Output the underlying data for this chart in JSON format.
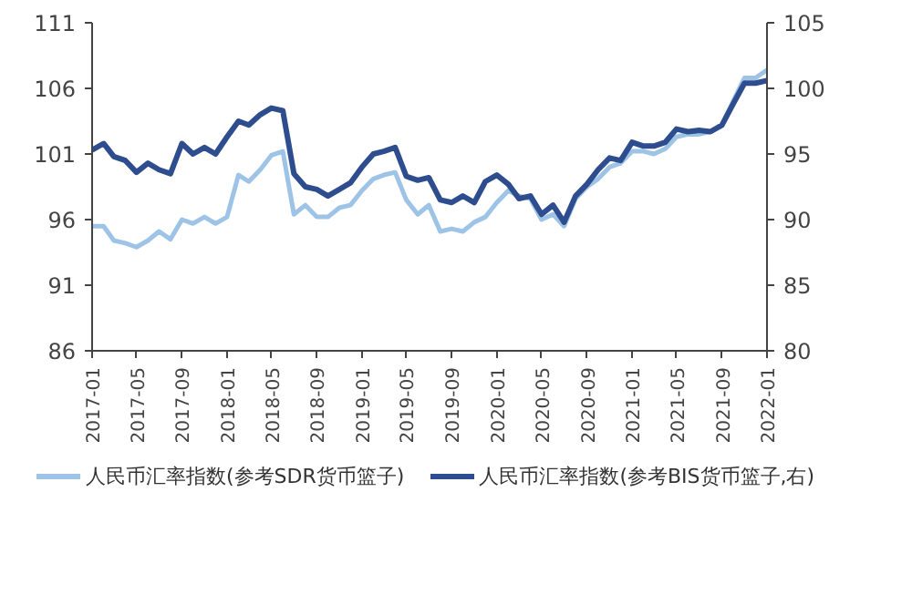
{
  "chart_data": {
    "type": "line",
    "x": [
      "2017-01",
      "2017-02",
      "2017-03",
      "2017-04",
      "2017-05",
      "2017-06",
      "2017-07",
      "2017-08",
      "2017-09",
      "2017-10",
      "2017-11",
      "2017-12",
      "2018-01",
      "2018-02",
      "2018-03",
      "2018-04",
      "2018-05",
      "2018-06",
      "2018-07",
      "2018-08",
      "2018-09",
      "2018-10",
      "2018-11",
      "2018-12",
      "2019-01",
      "2019-02",
      "2019-03",
      "2019-04",
      "2019-05",
      "2019-06",
      "2019-07",
      "2019-08",
      "2019-09",
      "2019-10",
      "2019-11",
      "2019-12",
      "2020-01",
      "2020-02",
      "2020-03",
      "2020-04",
      "2020-05",
      "2020-06",
      "2020-07",
      "2020-08",
      "2020-09",
      "2020-10",
      "2020-11",
      "2020-12",
      "2021-01",
      "2021-02",
      "2021-03",
      "2021-04",
      "2021-05",
      "2021-06",
      "2021-07",
      "2021-08",
      "2021-09",
      "2021-10",
      "2021-11",
      "2021-12",
      "2022-01"
    ],
    "series": [
      {
        "name": "人民币汇率指数(参考SDR货币篮子)",
        "color": "#9dc3e6",
        "values": [
          95.5,
          95.5,
          94.4,
          94.2,
          93.9,
          94.4,
          95.1,
          94.5,
          96.0,
          95.7,
          96.2,
          95.7,
          96.2,
          99.4,
          98.9,
          99.8,
          100.9,
          101.2,
          96.4,
          97.1,
          96.2,
          96.2,
          96.9,
          97.1,
          98.2,
          99.1,
          99.4,
          99.6,
          97.5,
          96.4,
          97.1,
          95.1,
          95.3,
          95.1,
          95.8,
          96.2,
          97.3,
          98.2,
          97.8,
          97.6,
          96.0,
          96.4,
          95.5,
          97.6,
          98.5,
          99.1,
          100.0,
          100.3,
          101.2,
          101.2,
          101.0,
          101.4,
          102.3,
          102.5,
          102.5,
          102.7,
          103.2,
          105.0,
          106.8,
          106.8,
          107.4
        ]
      },
      {
        "name": "人民币汇率指数(参考BIS货币篮子,右)",
        "color": "#2e4d8f",
        "axis": "y2",
        "values": [
          95.3,
          95.8,
          94.8,
          94.5,
          93.6,
          94.3,
          93.8,
          93.5,
          95.8,
          95.0,
          95.5,
          95.0,
          96.3,
          97.5,
          97.2,
          98.0,
          98.5,
          98.3,
          93.5,
          92.5,
          92.3,
          91.8,
          92.3,
          92.8,
          94.0,
          95.0,
          95.2,
          95.5,
          93.3,
          93.0,
          93.2,
          91.5,
          91.3,
          91.8,
          91.3,
          92.9,
          93.4,
          92.7,
          91.6,
          91.8,
          90.4,
          91.1,
          89.8,
          91.8,
          92.7,
          93.8,
          94.7,
          94.5,
          95.9,
          95.6,
          95.6,
          95.9,
          96.9,
          96.7,
          96.8,
          96.7,
          97.2,
          98.8,
          100.4,
          100.4,
          100.6
        ]
      }
    ],
    "xlim": [
      "2017-01",
      "2022-01"
    ],
    "xticks": [
      {
        "value": "2017-01",
        "label": "2017-01"
      },
      {
        "value": "2017-05",
        "label": "2017-05"
      },
      {
        "value": "2017-09",
        "label": "2017-09"
      },
      {
        "value": "2018-01",
        "label": "2018-01"
      },
      {
        "value": "2018-05",
        "label": "2018-05"
      },
      {
        "value": "2018-09",
        "label": "2018-09"
      },
      {
        "value": "2019-01",
        "label": "2019-01"
      },
      {
        "value": "2019-05",
        "label": "2019-05"
      },
      {
        "value": "2019-09",
        "label": "2019-09"
      },
      {
        "value": "2020-01",
        "label": "2020-01"
      },
      {
        "value": "2020-05",
        "label": "2020-05"
      },
      {
        "value": "2020-09",
        "label": "2020-09"
      },
      {
        "value": "2021-01",
        "label": "2021-01"
      },
      {
        "value": "2021-05",
        "label": "2021-05"
      },
      {
        "value": "2021-09",
        "label": "2021-09"
      },
      {
        "value": "2022-01",
        "label": "2022-01"
      }
    ],
    "ylim": [
      86,
      111
    ],
    "yticks": [
      86,
      91,
      96,
      101,
      106,
      111
    ],
    "y2lim": [
      80,
      105
    ],
    "y2ticks": [
      80,
      85,
      90,
      95,
      100,
      105
    ],
    "legend": "bottom",
    "grid": false,
    "line_style": "solid"
  }
}
